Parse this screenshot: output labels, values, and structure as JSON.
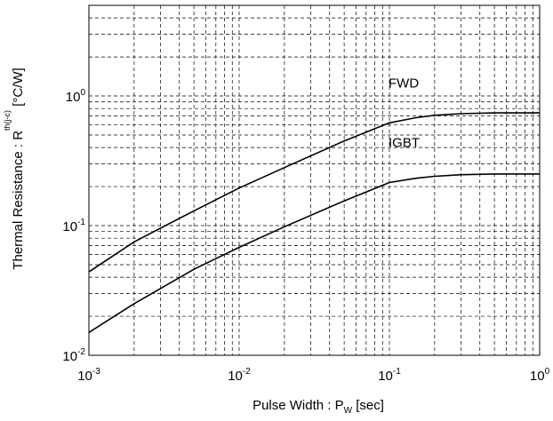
{
  "chart_data": {
    "type": "line",
    "x_scale": "log",
    "y_scale": "log",
    "xlim": [
      0.001,
      1
    ],
    "ylim": [
      0.01,
      5
    ],
    "grid": true,
    "xlabel": {
      "main": "Pulse Width  :  P",
      "sub": "W",
      "unit": "  [sec]"
    },
    "ylabel": {
      "main": "Thermal Resistance  :  R",
      "sub": "th(j-c)",
      "unit": "  [°C/W]"
    },
    "x_ticks": [
      {
        "value": 0.001,
        "base": "10",
        "exp": "-3"
      },
      {
        "value": 0.01,
        "base": "10",
        "exp": "-2"
      },
      {
        "value": 0.1,
        "base": "10",
        "exp": "-1"
      },
      {
        "value": 1,
        "base": "10",
        "exp": "0"
      }
    ],
    "y_ticks": [
      {
        "value": 0.01,
        "base": "10",
        "exp": "-2"
      },
      {
        "value": 0.1,
        "base": "10",
        "exp": "-1"
      },
      {
        "value": 1,
        "base": "10",
        "exp": "0"
      }
    ],
    "series": [
      {
        "name": "FWD",
        "x": [
          0.001,
          0.002,
          0.005,
          0.01,
          0.02,
          0.05,
          0.1,
          0.15,
          0.2,
          0.3,
          0.5,
          1
        ],
        "y": [
          0.044,
          0.075,
          0.13,
          0.195,
          0.28,
          0.45,
          0.62,
          0.68,
          0.71,
          0.73,
          0.74,
          0.74
        ]
      },
      {
        "name": "IGBT",
        "x": [
          0.001,
          0.002,
          0.005,
          0.01,
          0.02,
          0.05,
          0.1,
          0.15,
          0.2,
          0.3,
          0.5,
          1
        ],
        "y": [
          0.015,
          0.025,
          0.046,
          0.068,
          0.098,
          0.155,
          0.215,
          0.232,
          0.24,
          0.247,
          0.25,
          0.25
        ]
      }
    ]
  }
}
